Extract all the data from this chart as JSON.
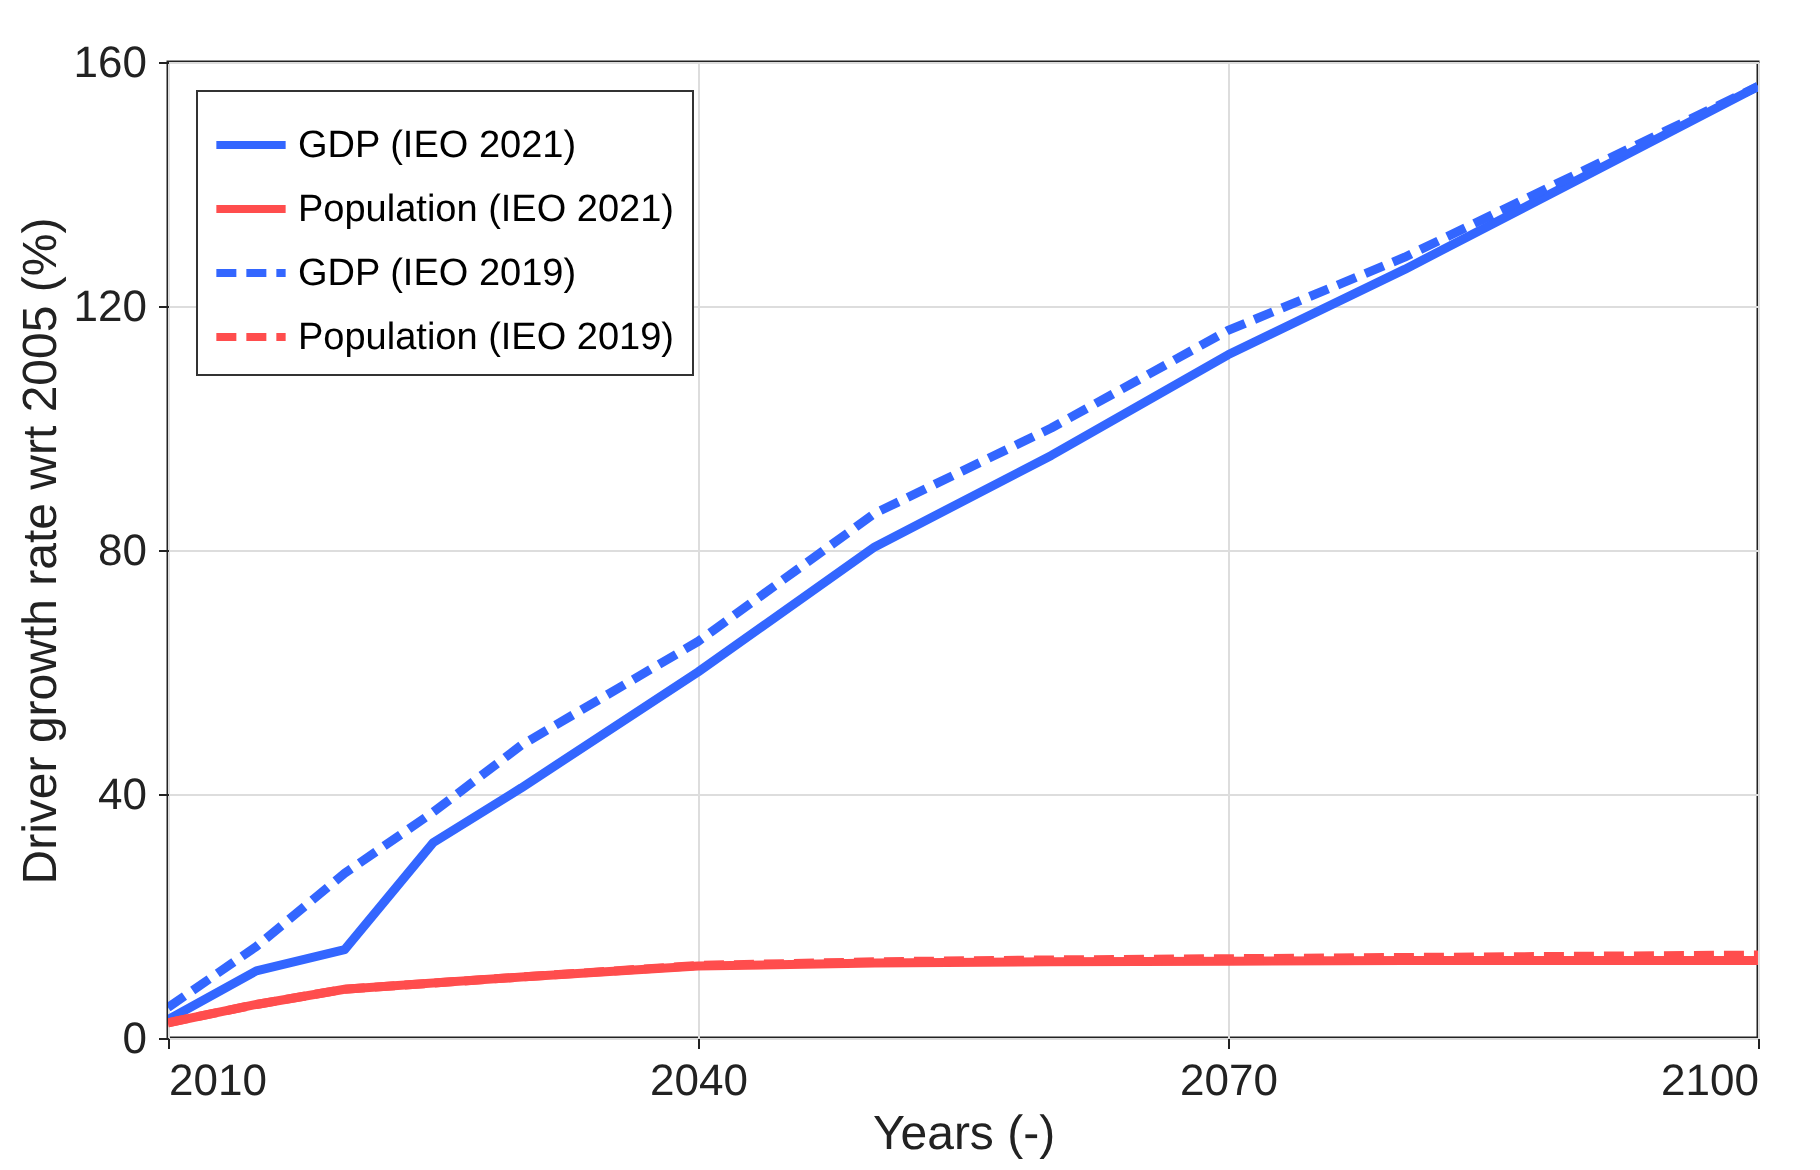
{
  "chart_data": {
    "type": "line",
    "xlabel": "Years (-)",
    "ylabel": "Driver growth rate wrt 2005 (%)",
    "x": [
      2010,
      2015,
      2020,
      2025,
      2030,
      2040,
      2050,
      2060,
      2070,
      2080,
      2090,
      2100
    ],
    "series": [
      {
        "name": "GDP (IEO 2021)",
        "color": "#3366ff",
        "line_style": "solid",
        "values": [
          3,
          11,
          14.5,
          32,
          41,
          60,
          80.5,
          95.5,
          112,
          126,
          141,
          156
        ]
      },
      {
        "name": "Population (IEO 2021)",
        "color": "#ff4d4d",
        "line_style": "solid",
        "values": [
          2.5,
          5.5,
          8,
          9,
          10,
          11.8,
          12.3,
          12.5,
          12.6,
          12.7,
          12.7,
          12.7
        ]
      },
      {
        "name": "GDP (IEO 2019)",
        "color": "#3366ff",
        "line_style": "dashed",
        "values": [
          5,
          15,
          27,
          37,
          48,
          65,
          86,
          100,
          116,
          128,
          142,
          156
        ]
      },
      {
        "name": "Population (IEO 2019)",
        "color": "#ff4d4d",
        "line_style": "dashed",
        "values": [
          2.5,
          5.5,
          8,
          9,
          10,
          11.9,
          12.5,
          12.8,
          13,
          13.2,
          13.4,
          13.6
        ]
      }
    ],
    "xlim": [
      2010,
      2100
    ],
    "xticks": [
      2010,
      2040,
      2070,
      2100
    ],
    "ylim": [
      0,
      160
    ],
    "yticks": [
      0,
      40,
      80,
      120,
      160
    ],
    "grid": true,
    "legend": "top left"
  }
}
